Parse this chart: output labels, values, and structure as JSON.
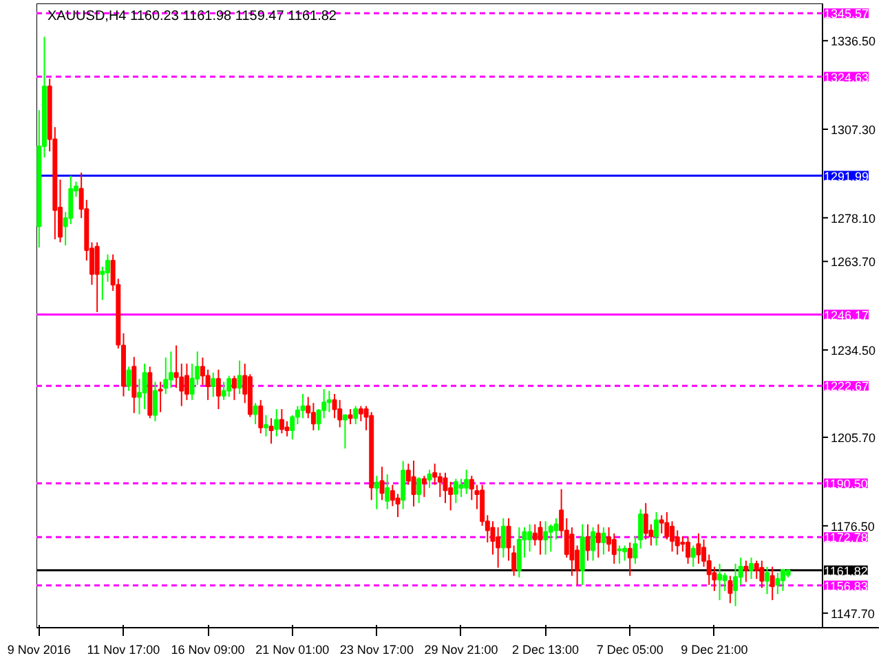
{
  "chart_data": {
    "type": "candlestick",
    "title": "XAUUSD,H4  1160.23 1161.98 1159.47 1161.82",
    "categories": [
      "9 Nov 2016",
      null,
      null,
      null,
      null,
      null,
      null,
      null,
      null,
      null,
      null,
      null,
      null,
      null,
      null,
      null,
      "11 Nov 17:00",
      null,
      null,
      null,
      null,
      null,
      null,
      null,
      null,
      null,
      null,
      null,
      null,
      null,
      null,
      null,
      "16 Nov 09:00",
      null,
      null,
      null,
      null,
      null,
      null,
      null,
      null,
      null,
      null,
      null,
      null,
      null,
      null,
      null,
      "21 Nov 01:00",
      null,
      null,
      null,
      null,
      null,
      null,
      null,
      null,
      null,
      null,
      null,
      null,
      null,
      null,
      null,
      "23 Nov 17:00",
      null,
      null,
      null,
      null,
      null,
      null,
      null,
      null,
      null,
      null,
      null,
      null,
      null,
      null,
      null,
      "29 Nov 21:00",
      null,
      null,
      null,
      null,
      null,
      null,
      null,
      null,
      null,
      null,
      null,
      null,
      null,
      null,
      null,
      "2 Dec 13:00",
      null,
      null,
      null,
      null,
      null,
      null,
      null,
      null,
      null,
      null,
      null,
      null,
      null,
      null,
      null,
      "7 Dec 05:00",
      null,
      null,
      null,
      null,
      null,
      null,
      null,
      null,
      null,
      null,
      null,
      null,
      null,
      null,
      null,
      "9 Dec 21:00",
      null,
      null,
      null,
      null,
      null,
      null,
      null,
      null,
      null,
      null,
      null,
      null,
      null,
      null
    ],
    "ohlc": [
      [
        1275.3,
        1313.6,
        1268.3,
        1301.7
      ],
      [
        1301.7,
        1337.8,
        1298,
        1321.5
      ],
      [
        1321.5,
        1324,
        1300,
        1304
      ],
      [
        1304,
        1308,
        1271,
        1280.6
      ],
      [
        1281.5,
        1290.7,
        1270,
        1271.8
      ],
      [
        1275.3,
        1280,
        1269,
        1278
      ],
      [
        1278,
        1292,
        1276,
        1287.7
      ],
      [
        1287,
        1290,
        1285,
        1288.5
      ],
      [
        1287.7,
        1293,
        1278,
        1281
      ],
      [
        1281,
        1284,
        1264,
        1267.4
      ],
      [
        1268,
        1270,
        1256,
        1259.5
      ],
      [
        1268.6,
        1270,
        1247,
        1259.5
      ],
      [
        1259.5,
        1262,
        1251,
        1260.4
      ],
      [
        1260,
        1266,
        1257,
        1264
      ],
      [
        1264,
        1266,
        1254,
        1256
      ],
      [
        1256,
        1258,
        1235,
        1236.2
      ],
      [
        1236,
        1240,
        1219.2,
        1222.6
      ],
      [
        1222.6,
        1229,
        1221,
        1227.8
      ],
      [
        1229,
        1232.2,
        1213.7,
        1219
      ],
      [
        1219,
        1225,
        1213.3,
        1220.4
      ],
      [
        1220.4,
        1230,
        1215,
        1227
      ],
      [
        1227,
        1229,
        1212,
        1213
      ],
      [
        1213,
        1224,
        1211,
        1221
      ],
      [
        1221.5,
        1224,
        1214,
        1221
      ],
      [
        1222,
        1232,
        1220,
        1224.7
      ],
      [
        1224.7,
        1234,
        1222,
        1227
      ],
      [
        1227,
        1236,
        1222,
        1225.5
      ],
      [
        1225.5,
        1230,
        1216,
        1221
      ],
      [
        1226,
        1230,
        1218,
        1220
      ],
      [
        1220,
        1230,
        1218,
        1225.1
      ],
      [
        1225,
        1234,
        1223,
        1229
      ],
      [
        1229,
        1232,
        1223,
        1226
      ],
      [
        1226,
        1228,
        1218,
        1222.5
      ],
      [
        1222.5,
        1227,
        1219,
        1225
      ],
      [
        1225,
        1228,
        1215,
        1219.4
      ],
      [
        1219.4,
        1224,
        1218,
        1221
      ],
      [
        1221,
        1226,
        1219,
        1225
      ],
      [
        1225,
        1226,
        1218,
        1222
      ],
      [
        1222,
        1231,
        1220,
        1226
      ],
      [
        1226,
        1230,
        1217,
        1220
      ],
      [
        1225.6,
        1226.5,
        1212.4,
        1213.3
      ],
      [
        1213.3,
        1217,
        1210,
        1216
      ],
      [
        1216,
        1218,
        1207,
        1208.9
      ],
      [
        1208.9,
        1213,
        1206,
        1209.8
      ],
      [
        1209.3,
        1212,
        1203.6,
        1208
      ],
      [
        1208.4,
        1215,
        1206,
        1211.5
      ],
      [
        1211.5,
        1215,
        1207,
        1208.4
      ],
      [
        1209,
        1211,
        1206,
        1208
      ],
      [
        1208,
        1213,
        1205,
        1212.4
      ],
      [
        1212.4,
        1216,
        1210,
        1214.6
      ],
      [
        1214.6,
        1220,
        1212,
        1216
      ],
      [
        1216,
        1219,
        1212,
        1213.8
      ],
      [
        1213.8,
        1217,
        1208,
        1210.2
      ],
      [
        1210.2,
        1215,
        1208,
        1214.6
      ],
      [
        1214.6,
        1221.6,
        1212,
        1217.2
      ],
      [
        1217.2,
        1221,
        1214,
        1218
      ],
      [
        1218,
        1220,
        1212,
        1214.9
      ],
      [
        1215,
        1218,
        1209,
        1211.5
      ],
      [
        1211.5,
        1213,
        1202,
        1213
      ],
      [
        1213,
        1215,
        1210,
        1212
      ],
      [
        1212,
        1216,
        1210,
        1215
      ],
      [
        1215,
        1216,
        1211,
        1213.5
      ],
      [
        1215,
        1216,
        1208,
        1212.4
      ],
      [
        1212.8,
        1214,
        1185,
        1189.1
      ],
      [
        1189,
        1193,
        1182,
        1190.8
      ],
      [
        1191.3,
        1196,
        1185,
        1187.3
      ],
      [
        1184.7,
        1193.5,
        1182,
        1189
      ],
      [
        1188,
        1190,
        1183,
        1185
      ],
      [
        1185.6,
        1187,
        1179.4,
        1183.8
      ],
      [
        1185,
        1197.9,
        1182,
        1194.8
      ],
      [
        1194.8,
        1197,
        1190,
        1191.3
      ],
      [
        1192.6,
        1198,
        1182.9,
        1186.9
      ],
      [
        1186.9,
        1192.5,
        1184,
        1192
      ],
      [
        1192,
        1193,
        1186,
        1190.4
      ],
      [
        1191.7,
        1195,
        1189,
        1193.5
      ],
      [
        1194,
        1197,
        1190,
        1192.6
      ],
      [
        1192.6,
        1194,
        1186,
        1191
      ],
      [
        1192.2,
        1194,
        1184,
        1188.2
      ],
      [
        1189,
        1191,
        1181.6,
        1186.9
      ],
      [
        1187,
        1192,
        1184,
        1191
      ],
      [
        1189,
        1192,
        1186,
        1190
      ],
      [
        1189,
        1195,
        1187,
        1191.7
      ],
      [
        1191.7,
        1193,
        1185,
        1188.7
      ],
      [
        1188,
        1190,
        1182,
        1186.9
      ],
      [
        1188.2,
        1190,
        1176.5,
        1178
      ],
      [
        1178,
        1180,
        1171,
        1175
      ],
      [
        1175.9,
        1178,
        1167,
        1171.5
      ],
      [
        1172.8,
        1176,
        1162.7,
        1169.3
      ],
      [
        1169.3,
        1179,
        1166,
        1176.3
      ],
      [
        1176.3,
        1179,
        1165,
        1169.3
      ],
      [
        1167.5,
        1170,
        1160,
        1161.8
      ],
      [
        1161.8,
        1176,
        1159.5,
        1171.9
      ],
      [
        1171.9,
        1176,
        1166,
        1174.5
      ],
      [
        1172,
        1177,
        1168,
        1174.5
      ],
      [
        1174,
        1177,
        1170,
        1172
      ],
      [
        1175.9,
        1178,
        1167,
        1171.9
      ],
      [
        1171.9,
        1178,
        1167,
        1174.5
      ],
      [
        1174.5,
        1177,
        1168,
        1176.3
      ],
      [
        1175,
        1179,
        1172,
        1177
      ],
      [
        1181.6,
        1188.6,
        1173,
        1175
      ],
      [
        1175,
        1179,
        1166,
        1167.1
      ],
      [
        1173.7,
        1176,
        1160,
        1165.3
      ],
      [
        1168.4,
        1170,
        1157,
        1161.8
      ],
      [
        1161.8,
        1177,
        1157,
        1172.8
      ],
      [
        1172.8,
        1177,
        1165,
        1168.4
      ],
      [
        1168.4,
        1176,
        1165,
        1174.5
      ],
      [
        1174,
        1177,
        1166,
        1171
      ],
      [
        1171,
        1176,
        1167,
        1174
      ],
      [
        1172.8,
        1176,
        1168,
        1170.5
      ],
      [
        1171.9,
        1174,
        1164,
        1167.1
      ],
      [
        1168.4,
        1170,
        1164,
        1168.8
      ],
      [
        1168,
        1170,
        1165,
        1169
      ],
      [
        1169,
        1171,
        1160,
        1166
      ],
      [
        1166,
        1173,
        1164,
        1170.5
      ],
      [
        1171.9,
        1182,
        1169,
        1180.3
      ],
      [
        1180.3,
        1184,
        1172,
        1174.1
      ],
      [
        1175,
        1177,
        1170,
        1173
      ],
      [
        1173,
        1181,
        1170,
        1178.4
      ],
      [
        1178.4,
        1180,
        1174,
        1177.5
      ],
      [
        1177.5,
        1181,
        1172,
        1173
      ],
      [
        1176.3,
        1178,
        1168,
        1171.5
      ],
      [
        1172.8,
        1175,
        1167,
        1170
      ],
      [
        1171,
        1173,
        1168,
        1170.5
      ],
      [
        1171,
        1173,
        1164,
        1166.2
      ],
      [
        1166.2,
        1170,
        1163,
        1169
      ],
      [
        1170.5,
        1174,
        1164,
        1167
      ],
      [
        1169.3,
        1172,
        1163,
        1164.9
      ],
      [
        1164.9,
        1167,
        1157,
        1160.5
      ],
      [
        1161,
        1163,
        1155,
        1158.7
      ],
      [
        1158.7,
        1164,
        1152,
        1160.5
      ],
      [
        1158.5,
        1161,
        1155,
        1160
      ],
      [
        1158.3,
        1160,
        1151,
        1154.3
      ],
      [
        1155.2,
        1164,
        1150,
        1159.6
      ],
      [
        1159.6,
        1166,
        1157,
        1163.1
      ],
      [
        1163.1,
        1165,
        1158,
        1161.8
      ],
      [
        1161.8,
        1166,
        1159,
        1164
      ],
      [
        1164,
        1165,
        1159,
        1161.8
      ],
      [
        1162.7,
        1165,
        1156,
        1158.3
      ],
      [
        1158.3,
        1163,
        1154,
        1161
      ],
      [
        1160,
        1163,
        1152,
        1156.5
      ],
      [
        1157,
        1161,
        1154,
        1159
      ],
      [
        1158.5,
        1162,
        1155,
        1162
      ],
      [
        1160.23,
        1161.98,
        1159.47,
        1161.82
      ]
    ],
    "colors": [
      "#00ff00",
      "#00ff00",
      "#ff0000",
      "#ff0000",
      "#ff0000",
      "#00ff00",
      "#00ff00",
      "#00ff00",
      "#ff0000",
      "#ff0000",
      "#ff0000",
      "#ff0000",
      "#00ff00",
      "#00ff00",
      "#ff0000",
      "#ff0000",
      "#ff0000",
      "#00ff00",
      "#ff0000",
      "#00ff00",
      "#00ff00",
      "#ff0000",
      "#00ff00",
      "#ff0000",
      "#00ff00",
      "#00ff00",
      "#ff0000",
      "#ff0000",
      "#ff0000",
      "#00ff00",
      "#00ff00",
      "#ff0000",
      "#ff0000",
      "#00ff00",
      "#ff0000",
      "#00ff00",
      "#00ff00",
      "#ff0000",
      "#00ff00",
      "#ff0000",
      "#ff0000",
      "#00ff00",
      "#ff0000",
      "#00ff00",
      "#ff0000",
      "#00ff00",
      "#ff0000",
      "#ff0000",
      "#00ff00",
      "#00ff00",
      "#00ff00",
      "#ff0000",
      "#ff0000",
      "#00ff00",
      "#00ff00",
      "#00ff00",
      "#ff0000",
      "#ff0000",
      "#00ff00",
      "#ff0000",
      "#00ff00",
      "#ff0000",
      "#ff0000",
      "#ff0000",
      "#00ff00",
      "#ff0000",
      "#00ff00",
      "#ff0000",
      "#ff0000",
      "#00ff00",
      "#ff0000",
      "#ff0000",
      "#00ff00",
      "#ff0000",
      "#00ff00",
      "#ff0000",
      "#ff0000",
      "#ff0000",
      "#ff0000",
      "#00ff00",
      "#00ff00",
      "#00ff00",
      "#ff0000",
      "#ff0000",
      "#ff0000",
      "#ff0000",
      "#ff0000",
      "#ff0000",
      "#00ff00",
      "#ff0000",
      "#ff0000",
      "#00ff00",
      "#00ff00",
      "#00ff00",
      "#ff0000",
      "#ff0000",
      "#00ff00",
      "#00ff00",
      "#00ff00",
      "#ff0000",
      "#ff0000",
      "#ff0000",
      "#ff0000",
      "#00ff00",
      "#ff0000",
      "#00ff00",
      "#ff0000",
      "#00ff00",
      "#ff0000",
      "#ff0000",
      "#00ff00",
      "#00ff00",
      "#ff0000",
      "#00ff00",
      "#00ff00",
      "#ff0000",
      "#ff0000",
      "#00ff00",
      "#ff0000",
      "#ff0000",
      "#ff0000",
      "#ff0000",
      "#ff0000",
      "#ff0000",
      "#00ff00",
      "#ff0000",
      "#ff0000",
      "#ff0000",
      "#ff0000",
      "#00ff00",
      "#00ff00",
      "#ff0000",
      "#00ff00",
      "#00ff00",
      "#ff0000",
      "#00ff00",
      "#ff0000",
      "#ff0000",
      "#00ff00",
      "#ff0000",
      "#00ff00",
      "#00ff00",
      "#00ff00"
    ],
    "ylim": [
      1142.9,
      1348.8
    ],
    "yticks": [
      {
        "value": 1336.5,
        "label": "1336.50"
      },
      {
        "value": 1307.3,
        "label": "1307.30"
      },
      {
        "value": 1278.1,
        "label": "1278.10"
      },
      {
        "value": 1263.7,
        "label": "1263.70"
      },
      {
        "value": 1234.5,
        "label": "1234.50"
      },
      {
        "value": 1205.7,
        "label": "1205.70"
      },
      {
        "value": 1176.5,
        "label": "1176.50"
      },
      {
        "value": 1147.7,
        "label": "1147.70"
      }
    ],
    "ref_lines": [
      {
        "axis": "y",
        "value": 1345.57,
        "label": "1345.57",
        "color": "#ff00ff",
        "line_style": "dashed"
      },
      {
        "axis": "y",
        "value": 1324.63,
        "label": "1324.63",
        "color": "#ff00ff",
        "line_style": "dashed"
      },
      {
        "axis": "y",
        "value": 1291.99,
        "label": "1291.99",
        "color": "#0000ff",
        "line_style": "solid"
      },
      {
        "axis": "y",
        "value": 1246.17,
        "label": "1246.17",
        "color": "#ff00ff",
        "line_style": "solid"
      },
      {
        "axis": "y",
        "value": 1222.67,
        "label": "1222.67",
        "color": "#ff00ff",
        "line_style": "dashed"
      },
      {
        "axis": "y",
        "value": 1190.5,
        "label": "1190.50",
        "color": "#ff00ff",
        "line_style": "dashed"
      },
      {
        "axis": "y",
        "value": 1172.78,
        "label": "1172.78",
        "color": "#ff00ff",
        "line_style": "dashed"
      },
      {
        "axis": "y",
        "value": 1161.82,
        "label": "1161.82",
        "color": "#000000",
        "line_style": "solid"
      },
      {
        "axis": "y",
        "value": 1156.83,
        "label": "1156.83",
        "color": "#ff00ff",
        "line_style": "dashed"
      }
    ]
  }
}
